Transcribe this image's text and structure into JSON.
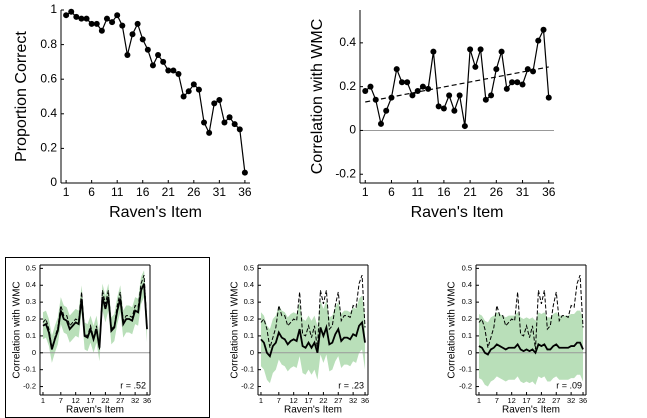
{
  "chart_data": [
    {
      "type": "line",
      "xlabel": "Raven's Item",
      "ylabel": "Proportion Correct",
      "x": [
        1,
        2,
        3,
        4,
        5,
        6,
        7,
        8,
        9,
        10,
        11,
        12,
        13,
        14,
        15,
        16,
        17,
        18,
        19,
        20,
        21,
        22,
        23,
        24,
        25,
        26,
        27,
        28,
        29,
        30,
        31,
        32,
        33,
        34,
        35,
        36
      ],
      "xlim": [
        0,
        37
      ],
      "xticks": [
        1,
        6,
        11,
        16,
        21,
        26,
        31,
        36
      ],
      "ylim": [
        0,
        1
      ],
      "yticks": [
        0,
        0.2,
        0.4,
        0.6,
        0.8,
        1
      ],
      "series": [
        {
          "color": "#000000",
          "style": "solid",
          "markers": true,
          "values": [
            0.97,
            0.99,
            0.96,
            0.95,
            0.95,
            0.92,
            0.92,
            0.88,
            0.95,
            0.93,
            0.97,
            0.91,
            0.74,
            0.86,
            0.92,
            0.83,
            0.77,
            0.68,
            0.74,
            0.7,
            0.65,
            0.65,
            0.63,
            0.5,
            0.53,
            0.57,
            0.54,
            0.35,
            0.29,
            0.46,
            0.48,
            0.35,
            0.38,
            0.34,
            0.31,
            0.06
          ]
        }
      ]
    },
    {
      "type": "line",
      "xlabel": "Raven's Item",
      "ylabel": "Correlation with WMC",
      "x": [
        1,
        2,
        3,
        4,
        5,
        6,
        7,
        8,
        9,
        10,
        11,
        12,
        13,
        14,
        15,
        16,
        17,
        18,
        19,
        20,
        21,
        22,
        23,
        24,
        25,
        26,
        27,
        28,
        29,
        30,
        31,
        32,
        33,
        34,
        35,
        36
      ],
      "xlim": [
        0,
        37
      ],
      "xticks": [
        1,
        6,
        11,
        16,
        21,
        26,
        31,
        36
      ],
      "ylim": [
        -0.24,
        0.55
      ],
      "yticks": [
        -0.2,
        0,
        0.2,
        0.4
      ],
      "reference_line": 0,
      "series": [
        {
          "color": "#000000",
          "style": "solid",
          "markers": true,
          "values": [
            0.18,
            0.2,
            0.14,
            0.03,
            0.09,
            0.15,
            0.28,
            0.22,
            0.22,
            0.16,
            0.18,
            0.2,
            0.19,
            0.36,
            0.11,
            0.1,
            0.16,
            0.09,
            0.16,
            0.02,
            0.37,
            0.29,
            0.37,
            0.14,
            0.16,
            0.28,
            0.36,
            0.19,
            0.22,
            0.22,
            0.21,
            0.28,
            0.27,
            0.41,
            0.46,
            0.15
          ]
        }
      ],
      "trend": {
        "x": [
          1,
          36
        ],
        "values": [
          0.13,
          0.29
        ],
        "color": "#000000",
        "style": "dashed"
      }
    },
    {
      "type": "line",
      "xlabel": "Raven's Item",
      "ylabel": "Correlation with WMC",
      "annotation": "r = .52",
      "x": [
        1,
        2,
        3,
        4,
        5,
        6,
        7,
        8,
        9,
        10,
        11,
        12,
        13,
        14,
        15,
        16,
        17,
        18,
        19,
        20,
        21,
        22,
        23,
        24,
        25,
        26,
        27,
        28,
        29,
        30,
        31,
        32,
        33,
        34,
        35,
        36
      ],
      "xlim": [
        0,
        37
      ],
      "xticks": [
        1,
        7,
        12,
        17,
        22,
        27,
        32,
        36
      ],
      "ylim": [
        -0.25,
        0.52
      ],
      "yticks": [
        -0.2,
        -0.1,
        0,
        0.1,
        0.2,
        0.3,
        0.4,
        0.5
      ],
      "reference_line": 0,
      "band": {
        "color": "#b9dfb9",
        "lower": [
          0.08,
          0.09,
          0.04,
          -0.06,
          0.0,
          0.05,
          0.17,
          0.12,
          0.11,
          0.06,
          0.08,
          0.1,
          0.09,
          0.24,
          0.02,
          0.01,
          0.06,
          0.0,
          0.06,
          -0.05,
          0.25,
          0.18,
          0.25,
          0.05,
          0.07,
          0.17,
          0.24,
          0.09,
          0.12,
          0.12,
          0.11,
          0.17,
          0.16,
          0.29,
          0.33,
          0.06
        ],
        "upper": [
          0.24,
          0.25,
          0.2,
          0.1,
          0.16,
          0.21,
          0.33,
          0.28,
          0.27,
          0.22,
          0.24,
          0.26,
          0.25,
          0.4,
          0.18,
          0.17,
          0.22,
          0.16,
          0.22,
          0.11,
          0.41,
          0.34,
          0.41,
          0.21,
          0.23,
          0.33,
          0.4,
          0.25,
          0.28,
          0.28,
          0.27,
          0.33,
          0.32,
          0.45,
          0.49,
          0.22
        ]
      },
      "series": [
        {
          "color": "#000000",
          "style": "dashed",
          "markers": false,
          "values": [
            0.18,
            0.2,
            0.14,
            0.03,
            0.09,
            0.15,
            0.28,
            0.22,
            0.22,
            0.16,
            0.18,
            0.2,
            0.19,
            0.36,
            0.11,
            0.1,
            0.16,
            0.09,
            0.16,
            0.02,
            0.37,
            0.29,
            0.37,
            0.14,
            0.16,
            0.28,
            0.36,
            0.19,
            0.22,
            0.22,
            0.21,
            0.28,
            0.27,
            0.41,
            0.46,
            0.15
          ]
        },
        {
          "color": "#000000",
          "style": "solid",
          "markers": false,
          "values": [
            0.16,
            0.17,
            0.12,
            0.02,
            0.08,
            0.13,
            0.25,
            0.2,
            0.19,
            0.14,
            0.16,
            0.18,
            0.17,
            0.32,
            0.1,
            0.09,
            0.14,
            0.08,
            0.14,
            0.03,
            0.33,
            0.26,
            0.33,
            0.13,
            0.15,
            0.25,
            0.32,
            0.17,
            0.2,
            0.2,
            0.19,
            0.25,
            0.24,
            0.37,
            0.41,
            0.14
          ]
        }
      ]
    },
    {
      "type": "line",
      "xlabel": "Raven's Item",
      "ylabel": "Correlation with WMC",
      "annotation": "r = .23",
      "x": [
        1,
        2,
        3,
        4,
        5,
        6,
        7,
        8,
        9,
        10,
        11,
        12,
        13,
        14,
        15,
        16,
        17,
        18,
        19,
        20,
        21,
        22,
        23,
        24,
        25,
        26,
        27,
        28,
        29,
        30,
        31,
        32,
        33,
        34,
        35,
        36
      ],
      "xlim": [
        0,
        37
      ],
      "xticks": [
        1,
        7,
        12,
        17,
        22,
        27,
        32,
        36
      ],
      "ylim": [
        -0.25,
        0.52
      ],
      "yticks": [
        -0.2,
        -0.1,
        0,
        0.1,
        0.2,
        0.3,
        0.4,
        0.5
      ],
      "reference_line": 0,
      "band": {
        "color": "#b9dfb9",
        "lower": [
          -0.08,
          -0.1,
          -0.16,
          -0.18,
          -0.12,
          -0.1,
          -0.04,
          -0.07,
          -0.08,
          -0.11,
          -0.09,
          -0.08,
          -0.09,
          -0.02,
          -0.12,
          -0.13,
          -0.1,
          -0.13,
          -0.1,
          -0.16,
          -0.01,
          -0.06,
          -0.01,
          -0.11,
          -0.1,
          -0.05,
          -0.02,
          -0.09,
          -0.07,
          -0.07,
          -0.08,
          -0.05,
          -0.06,
          0.0,
          0.02,
          -0.1
        ],
        "upper": [
          0.24,
          0.22,
          0.16,
          0.14,
          0.2,
          0.22,
          0.28,
          0.25,
          0.24,
          0.21,
          0.23,
          0.24,
          0.23,
          0.3,
          0.2,
          0.19,
          0.22,
          0.19,
          0.22,
          0.16,
          0.31,
          0.26,
          0.31,
          0.21,
          0.22,
          0.27,
          0.3,
          0.23,
          0.25,
          0.25,
          0.24,
          0.27,
          0.26,
          0.32,
          0.34,
          0.22
        ]
      },
      "series": [
        {
          "color": "#000000",
          "style": "dashed",
          "markers": false,
          "values": [
            0.18,
            0.2,
            0.14,
            0.03,
            0.09,
            0.15,
            0.28,
            0.22,
            0.22,
            0.16,
            0.18,
            0.2,
            0.19,
            0.36,
            0.11,
            0.1,
            0.16,
            0.09,
            0.16,
            0.02,
            0.37,
            0.29,
            0.37,
            0.14,
            0.16,
            0.28,
            0.36,
            0.19,
            0.22,
            0.22,
            0.21,
            0.28,
            0.27,
            0.41,
            0.46,
            0.15
          ]
        },
        {
          "color": "#000000",
          "style": "solid",
          "markers": false,
          "values": [
            0.08,
            0.06,
            0.0,
            -0.02,
            0.04,
            0.06,
            0.12,
            0.09,
            0.08,
            0.05,
            0.07,
            0.08,
            0.07,
            0.14,
            0.04,
            0.03,
            0.06,
            0.03,
            0.06,
            0.0,
            0.15,
            0.1,
            0.15,
            0.05,
            0.06,
            0.11,
            0.14,
            0.07,
            0.09,
            0.09,
            0.08,
            0.11,
            0.1,
            0.16,
            0.18,
            0.06
          ]
        }
      ]
    },
    {
      "type": "line",
      "xlabel": "Raven's Item",
      "ylabel": "Correlation with WMC",
      "annotation": "r = .09",
      "x": [
        1,
        2,
        3,
        4,
        5,
        6,
        7,
        8,
        9,
        10,
        11,
        12,
        13,
        14,
        15,
        16,
        17,
        18,
        19,
        20,
        21,
        22,
        23,
        24,
        25,
        26,
        27,
        28,
        29,
        30,
        31,
        32,
        33,
        34,
        35,
        36
      ],
      "xlim": [
        0,
        37
      ],
      "xticks": [
        1,
        7,
        12,
        17,
        22,
        27,
        32,
        36
      ],
      "ylim": [
        -0.25,
        0.52
      ],
      "yticks": [
        -0.2,
        -0.1,
        0,
        0.1,
        0.2,
        0.3,
        0.4,
        0.5
      ],
      "reference_line": 0,
      "band": {
        "color": "#b9dfb9",
        "lower": [
          -0.15,
          -0.16,
          -0.19,
          -0.2,
          -0.17,
          -0.16,
          -0.14,
          -0.15,
          -0.16,
          -0.17,
          -0.16,
          -0.16,
          -0.16,
          -0.14,
          -0.17,
          -0.18,
          -0.17,
          -0.18,
          -0.17,
          -0.19,
          -0.14,
          -0.15,
          -0.14,
          -0.17,
          -0.17,
          -0.15,
          -0.14,
          -0.16,
          -0.16,
          -0.16,
          -0.16,
          -0.15,
          -0.15,
          -0.13,
          -0.13,
          -0.17
        ],
        "upper": [
          0.23,
          0.22,
          0.19,
          0.18,
          0.21,
          0.22,
          0.24,
          0.23,
          0.22,
          0.21,
          0.22,
          0.22,
          0.22,
          0.24,
          0.21,
          0.2,
          0.21,
          0.2,
          0.21,
          0.19,
          0.24,
          0.23,
          0.24,
          0.21,
          0.21,
          0.23,
          0.24,
          0.22,
          0.22,
          0.22,
          0.22,
          0.23,
          0.23,
          0.25,
          0.25,
          0.21
        ]
      },
      "series": [
        {
          "color": "#000000",
          "style": "dashed",
          "markers": false,
          "values": [
            0.18,
            0.2,
            0.14,
            0.03,
            0.09,
            0.15,
            0.28,
            0.22,
            0.22,
            0.16,
            0.18,
            0.2,
            0.19,
            0.36,
            0.11,
            0.1,
            0.16,
            0.09,
            0.16,
            0.02,
            0.37,
            0.29,
            0.37,
            0.14,
            0.16,
            0.28,
            0.36,
            0.19,
            0.22,
            0.22,
            0.21,
            0.28,
            0.27,
            0.41,
            0.46,
            0.15
          ]
        },
        {
          "color": "#000000",
          "style": "solid",
          "markers": false,
          "values": [
            0.04,
            0.03,
            0.0,
            -0.01,
            0.02,
            0.03,
            0.05,
            0.04,
            0.03,
            0.02,
            0.03,
            0.03,
            0.03,
            0.05,
            0.02,
            0.01,
            0.02,
            0.01,
            0.02,
            0.0,
            0.05,
            0.04,
            0.05,
            0.02,
            0.02,
            0.04,
            0.05,
            0.03,
            0.03,
            0.03,
            0.03,
            0.04,
            0.04,
            0.06,
            0.06,
            0.02
          ]
        }
      ]
    }
  ]
}
